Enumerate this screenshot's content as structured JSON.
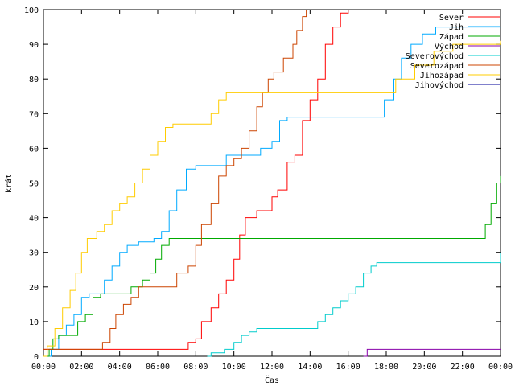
{
  "chart_data": {
    "type": "line",
    "title": "",
    "xlabel": "Čas",
    "ylabel": "krát",
    "xlim": [
      0,
      24
    ],
    "ylim": [
      0,
      100
    ],
    "x_ticks": [
      "00:00",
      "02:00",
      "04:00",
      "06:00",
      "08:00",
      "10:00",
      "12:00",
      "14:00",
      "16:00",
      "18:00",
      "20:00",
      "22:00",
      "00:00"
    ],
    "y_ticks": [
      0,
      10,
      20,
      30,
      40,
      50,
      60,
      70,
      80,
      90,
      100
    ],
    "legend_position": "top-right",
    "grid": false,
    "series": [
      {
        "name": "Sever",
        "color": "#ff0000",
        "points": [
          [
            0,
            2
          ],
          [
            7.3,
            2
          ],
          [
            7.6,
            4
          ],
          [
            8.0,
            5
          ],
          [
            8.3,
            10
          ],
          [
            8.8,
            14
          ],
          [
            9.2,
            18
          ],
          [
            9.6,
            22
          ],
          [
            10.0,
            28
          ],
          [
            10.3,
            35
          ],
          [
            10.6,
            40
          ],
          [
            11.2,
            42
          ],
          [
            11.7,
            42
          ],
          [
            12.0,
            46
          ],
          [
            12.3,
            48
          ],
          [
            12.8,
            56
          ],
          [
            13.2,
            58
          ],
          [
            13.6,
            68
          ],
          [
            14.0,
            74
          ],
          [
            14.4,
            80
          ],
          [
            14.8,
            90
          ],
          [
            15.2,
            95
          ],
          [
            15.6,
            99
          ],
          [
            16.0,
            100
          ]
        ]
      },
      {
        "name": "Jih",
        "color": "#00aaff",
        "points": [
          [
            0.2,
            0
          ],
          [
            0.4,
            2
          ],
          [
            0.8,
            6
          ],
          [
            1.2,
            9
          ],
          [
            1.6,
            12
          ],
          [
            2.0,
            17
          ],
          [
            2.4,
            18
          ],
          [
            2.8,
            18
          ],
          [
            3.2,
            22
          ],
          [
            3.6,
            26
          ],
          [
            4.0,
            30
          ],
          [
            4.4,
            32
          ],
          [
            5.0,
            33
          ],
          [
            5.8,
            34
          ],
          [
            6.2,
            36
          ],
          [
            6.6,
            42
          ],
          [
            7.0,
            48
          ],
          [
            7.5,
            54
          ],
          [
            8.0,
            55
          ],
          [
            9.2,
            55
          ],
          [
            9.6,
            58
          ],
          [
            10.8,
            58
          ],
          [
            11.4,
            60
          ],
          [
            12.0,
            62
          ],
          [
            12.4,
            68
          ],
          [
            12.8,
            69
          ],
          [
            16.5,
            69
          ],
          [
            17.5,
            69
          ],
          [
            17.9,
            74
          ],
          [
            18.4,
            80
          ],
          [
            18.8,
            86
          ],
          [
            19.3,
            90
          ],
          [
            19.9,
            93
          ],
          [
            20.6,
            95
          ],
          [
            21.5,
            95
          ],
          [
            22.5,
            95
          ],
          [
            24.0,
            95
          ]
        ]
      },
      {
        "name": "Západ",
        "color": "#00aa00",
        "points": [
          [
            0,
            0
          ],
          [
            0.3,
            2
          ],
          [
            0.5,
            5
          ],
          [
            0.8,
            6
          ],
          [
            1.4,
            6
          ],
          [
            1.8,
            10
          ],
          [
            2.2,
            12
          ],
          [
            2.6,
            17
          ],
          [
            3.0,
            18
          ],
          [
            4.2,
            18
          ],
          [
            4.6,
            20
          ],
          [
            5.2,
            22
          ],
          [
            5.6,
            24
          ],
          [
            5.9,
            28
          ],
          [
            6.2,
            32
          ],
          [
            6.6,
            34
          ],
          [
            8.0,
            34
          ],
          [
            10.0,
            34
          ],
          [
            12.0,
            34
          ],
          [
            14.0,
            34
          ],
          [
            16.0,
            34
          ],
          [
            18.0,
            34
          ],
          [
            20.0,
            34
          ],
          [
            22.0,
            34
          ],
          [
            22.8,
            34
          ],
          [
            23.2,
            38
          ],
          [
            23.5,
            44
          ],
          [
            23.8,
            50
          ],
          [
            24.0,
            52
          ]
        ]
      },
      {
        "name": "Východ",
        "color": "#8800aa",
        "points": [
          [
            16.8,
            0
          ],
          [
            17.0,
            2
          ],
          [
            24.0,
            2
          ]
        ]
      },
      {
        "name": "Severovýchod",
        "color": "#00cccc",
        "points": [
          [
            8.6,
            0
          ],
          [
            8.8,
            1
          ],
          [
            9.5,
            2
          ],
          [
            10.0,
            4
          ],
          [
            10.4,
            6
          ],
          [
            10.8,
            7
          ],
          [
            11.2,
            8
          ],
          [
            13.8,
            8
          ],
          [
            14.4,
            10
          ],
          [
            14.8,
            12
          ],
          [
            15.2,
            14
          ],
          [
            15.6,
            16
          ],
          [
            16.0,
            18
          ],
          [
            16.4,
            20
          ],
          [
            16.8,
            24
          ],
          [
            17.2,
            26
          ],
          [
            17.5,
            27
          ],
          [
            19.0,
            27
          ],
          [
            21.0,
            27
          ],
          [
            22.5,
            27
          ],
          [
            23.6,
            27
          ],
          [
            24.0,
            30
          ]
        ]
      },
      {
        "name": "Severozápad",
        "color": "#cc4400",
        "points": [
          [
            0,
            2
          ],
          [
            2.8,
            2
          ],
          [
            3.1,
            4
          ],
          [
            3.5,
            8
          ],
          [
            3.8,
            12
          ],
          [
            4.2,
            15
          ],
          [
            4.6,
            17
          ],
          [
            5.0,
            20
          ],
          [
            6.5,
            20
          ],
          [
            7.0,
            24
          ],
          [
            7.6,
            26
          ],
          [
            8.0,
            32
          ],
          [
            8.3,
            38
          ],
          [
            8.8,
            44
          ],
          [
            9.2,
            52
          ],
          [
            9.6,
            55
          ],
          [
            10.0,
            57
          ],
          [
            10.4,
            60
          ],
          [
            10.8,
            65
          ],
          [
            11.2,
            72
          ],
          [
            11.5,
            76
          ],
          [
            11.8,
            80
          ],
          [
            12.1,
            82
          ],
          [
            12.6,
            86
          ],
          [
            13.1,
            90
          ],
          [
            13.3,
            94
          ],
          [
            13.6,
            98
          ],
          [
            13.8,
            100
          ]
        ]
      },
      {
        "name": "Jihozápad",
        "color": "#ffcc00",
        "points": [
          [
            0,
            0
          ],
          [
            0.2,
            3
          ],
          [
            0.6,
            8
          ],
          [
            1.0,
            14
          ],
          [
            1.4,
            19
          ],
          [
            1.7,
            24
          ],
          [
            2.0,
            30
          ],
          [
            2.3,
            34
          ],
          [
            2.8,
            36
          ],
          [
            3.2,
            38
          ],
          [
            3.6,
            42
          ],
          [
            4.0,
            44
          ],
          [
            4.4,
            46
          ],
          [
            4.8,
            50
          ],
          [
            5.2,
            54
          ],
          [
            5.6,
            58
          ],
          [
            6.0,
            62
          ],
          [
            6.4,
            66
          ],
          [
            6.8,
            67
          ],
          [
            8.4,
            67
          ],
          [
            8.8,
            70
          ],
          [
            9.2,
            74
          ],
          [
            9.6,
            76
          ],
          [
            17.9,
            76
          ],
          [
            18.5,
            80
          ],
          [
            19.5,
            84
          ],
          [
            20.5,
            88
          ],
          [
            21.5,
            90
          ],
          [
            22.5,
            90
          ],
          [
            24.0,
            91
          ]
        ]
      },
      {
        "name": "Jihovýchod",
        "color": "#000099",
        "points": []
      }
    ]
  }
}
